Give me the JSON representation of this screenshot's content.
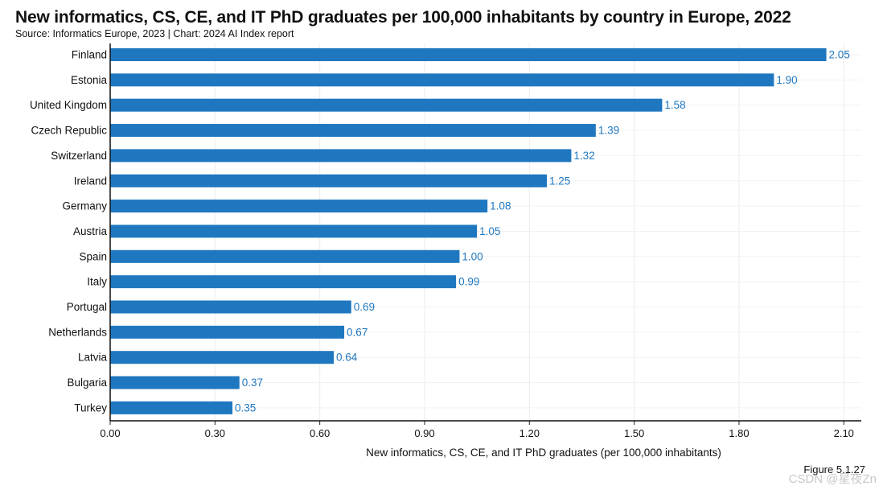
{
  "chart_data": {
    "type": "bar",
    "orientation": "horizontal",
    "title": "New informatics, CS, CE, and IT PhD graduates per 100,000 inhabitants by country in Europe, 2022",
    "subtitle": "Source: Informatics Europe, 2023 | Chart: 2024 AI Index report",
    "xlabel": "New informatics, CS, CE, and IT PhD graduates (per 100,000 inhabitants)",
    "ylabel": "",
    "categories": [
      "Finland",
      "Estonia",
      "United Kingdom",
      "Czech Republic",
      "Switzerland",
      "Ireland",
      "Germany",
      "Austria",
      "Spain",
      "Italy",
      "Portugal",
      "Netherlands",
      "Latvia",
      "Bulgaria",
      "Turkey"
    ],
    "values": [
      2.05,
      1.9,
      1.58,
      1.39,
      1.32,
      1.25,
      1.08,
      1.05,
      1.0,
      0.99,
      0.69,
      0.67,
      0.64,
      0.37,
      0.35
    ],
    "value_labels": [
      "2.05",
      "1.90",
      "1.58",
      "1.39",
      "1.32",
      "1.25",
      "1.08",
      "1.05",
      "1.00",
      "0.99",
      "0.69",
      "0.67",
      "0.64",
      "0.37",
      "0.35"
    ],
    "xlim": [
      0,
      2.15
    ],
    "xticks": [
      0,
      0.3,
      0.6,
      0.9,
      1.2,
      1.5,
      1.8,
      2.1
    ],
    "xtick_labels": [
      "0.00",
      "0.30",
      "0.60",
      "0.90",
      "1.20",
      "1.50",
      "1.80",
      "2.10"
    ],
    "grid": true,
    "bar_color": "#1f77c0",
    "label_color": "#1f77c0"
  },
  "figure_label": "Figure 5.1.27",
  "watermark": "CSDN @星夜Zn"
}
